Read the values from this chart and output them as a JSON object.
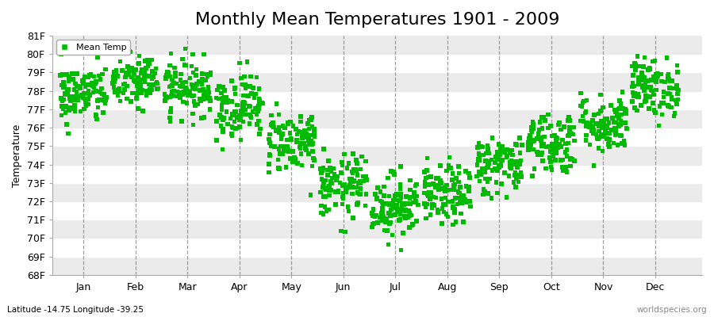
{
  "title": "Monthly Mean Temperatures 1901 - 2009",
  "ylabel": "Temperature",
  "xlabel_lat_lon": "Latitude -14.75 Longitude -39.25",
  "watermark": "worldspecies.org",
  "legend_label": "Mean Temp",
  "ylim": [
    68,
    81
  ],
  "yticks": [
    68,
    69,
    70,
    71,
    72,
    73,
    74,
    75,
    76,
    77,
    78,
    79,
    80,
    81
  ],
  "ytick_labels": [
    "68F",
    "69F",
    "70F",
    "71F",
    "72F",
    "73F",
    "74F",
    "75F",
    "76F",
    "77F",
    "78F",
    "79F",
    "80F",
    "81F"
  ],
  "months": [
    "Jan",
    "Feb",
    "Mar",
    "Apr",
    "May",
    "Jun",
    "Jul",
    "Aug",
    "Sep",
    "Oct",
    "Nov",
    "Dec"
  ],
  "marker_color": "#00BB00",
  "marker": "s",
  "marker_size": 4,
  "bg_color": "#FFFFFF",
  "band_color_light": "#FFFFFF",
  "band_color_dark": "#EBEBEB",
  "monthly_mean_temps": [
    77.8,
    78.5,
    78.2,
    77.2,
    75.3,
    72.8,
    71.8,
    72.3,
    74.0,
    75.2,
    76.2,
    78.2
  ],
  "monthly_std": [
    0.8,
    0.75,
    0.75,
    0.9,
    0.85,
    0.85,
    0.85,
    0.8,
    0.8,
    0.85,
    0.8,
    0.8
  ],
  "n_years": 109,
  "random_seed": 42,
  "title_fontsize": 16,
  "axis_fontsize": 9,
  "tick_fontsize": 9
}
